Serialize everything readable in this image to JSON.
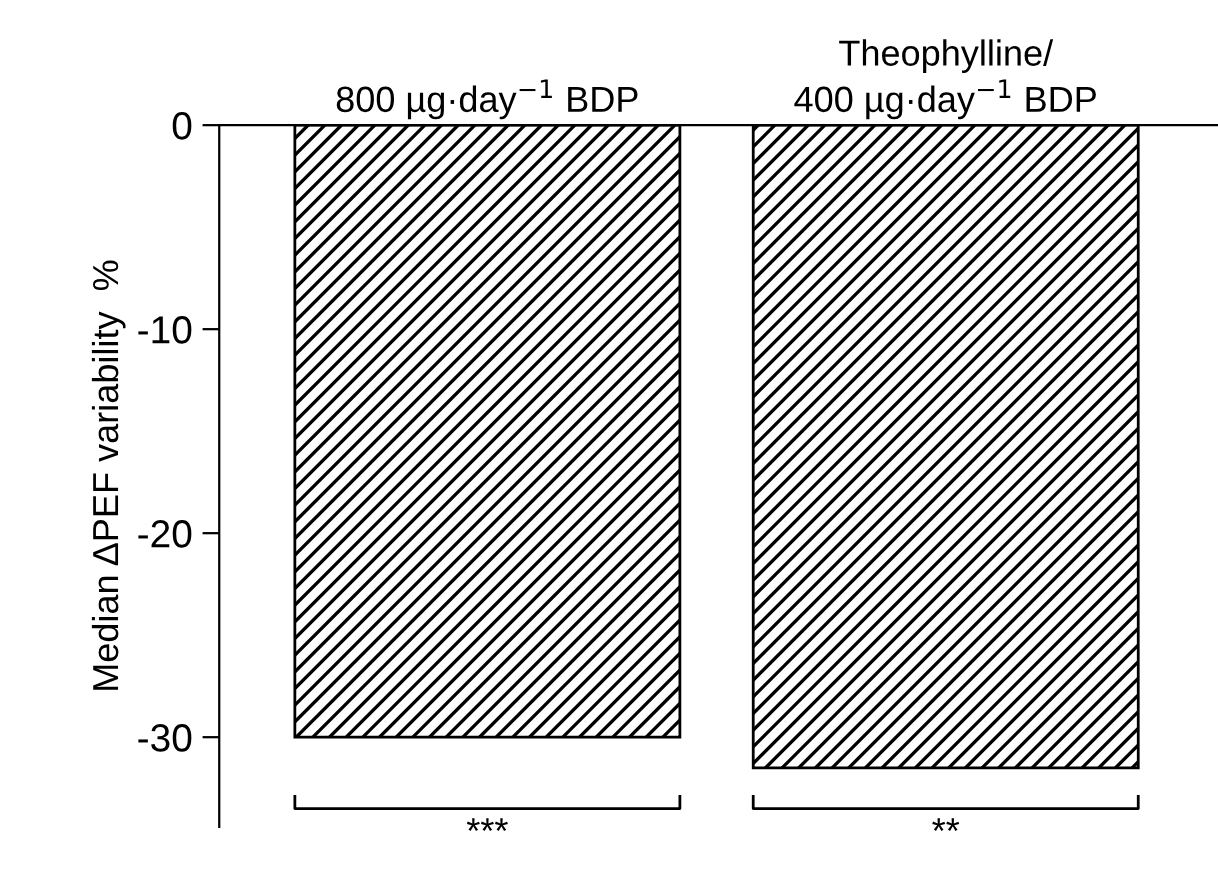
{
  "chart_data": {
    "type": "bar",
    "categories": [
      "800 µg·day$^{−1}$ BDP",
      "Theophylline/\n400 µg·day$^{−1}$ BDP"
    ],
    "values": [
      -30,
      -31.5
    ],
    "color": "#000000",
    "ylabel": "Median ΔPEF variability  %",
    "ylim": [
      -34.4,
      0
    ],
    "yticks": [
      0,
      -10,
      -20,
      -30
    ],
    "grid": false,
    "annotations": [
      "***",
      "**"
    ]
  }
}
